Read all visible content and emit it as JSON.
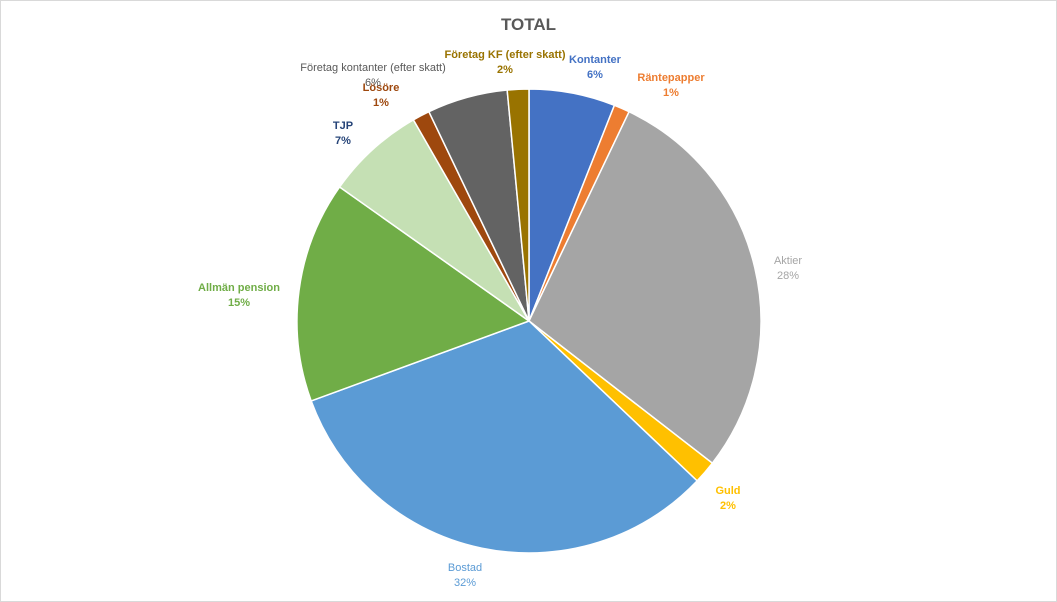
{
  "chart_data": {
    "type": "pie",
    "title": "TOTAL",
    "start_angle_deg": 0,
    "direction": "clockwise",
    "slices": [
      {
        "name": "Kontanter",
        "value": 6,
        "label": "6%",
        "color": "#4472c4",
        "label_color": "#4472c4",
        "label_bold": true
      },
      {
        "name": "Räntepapper",
        "value": 1.1,
        "label": "1%",
        "color": "#ed7d31",
        "label_color": "#ed7d31",
        "label_bold": true
      },
      {
        "name": "Aktier",
        "value": 28.4,
        "label": "28%",
        "color": "#a5a5a5",
        "label_color": "#a5a5a5",
        "label_bold": false
      },
      {
        "name": "Guld",
        "value": 1.6,
        "label": "2%",
        "color": "#ffc000",
        "label_color": "#ffc000",
        "label_bold": true
      },
      {
        "name": "Bostad",
        "value": 32.3,
        "label": "32%",
        "color": "#5b9bd5",
        "label_color": "#5b9bd5",
        "label_bold": false
      },
      {
        "name": "Allmän pension",
        "value": 15.4,
        "label": "15%",
        "color": "#70ad47",
        "label_color": "#70ad47",
        "label_bold": true
      },
      {
        "name": "TJP",
        "value": 6.9,
        "label": "7%",
        "color": "#c5e0b4",
        "label_color": "#264478",
        "label_bold": true
      },
      {
        "name": "Lösöre",
        "value": 1.2,
        "label": "1%",
        "color": "#9e480e",
        "label_color": "#9e480e",
        "label_bold": true
      },
      {
        "name": "Företag kontanter (efter skatt)",
        "value": 5.6,
        "label": "6%",
        "color": "#636363",
        "label_color": "#595959",
        "label_bold": false
      },
      {
        "name": "Företag KF (efter skatt)",
        "value": 1.5,
        "label": "2%",
        "color": "#997300",
        "label_color": "#997300",
        "label_bold": true
      }
    ]
  }
}
